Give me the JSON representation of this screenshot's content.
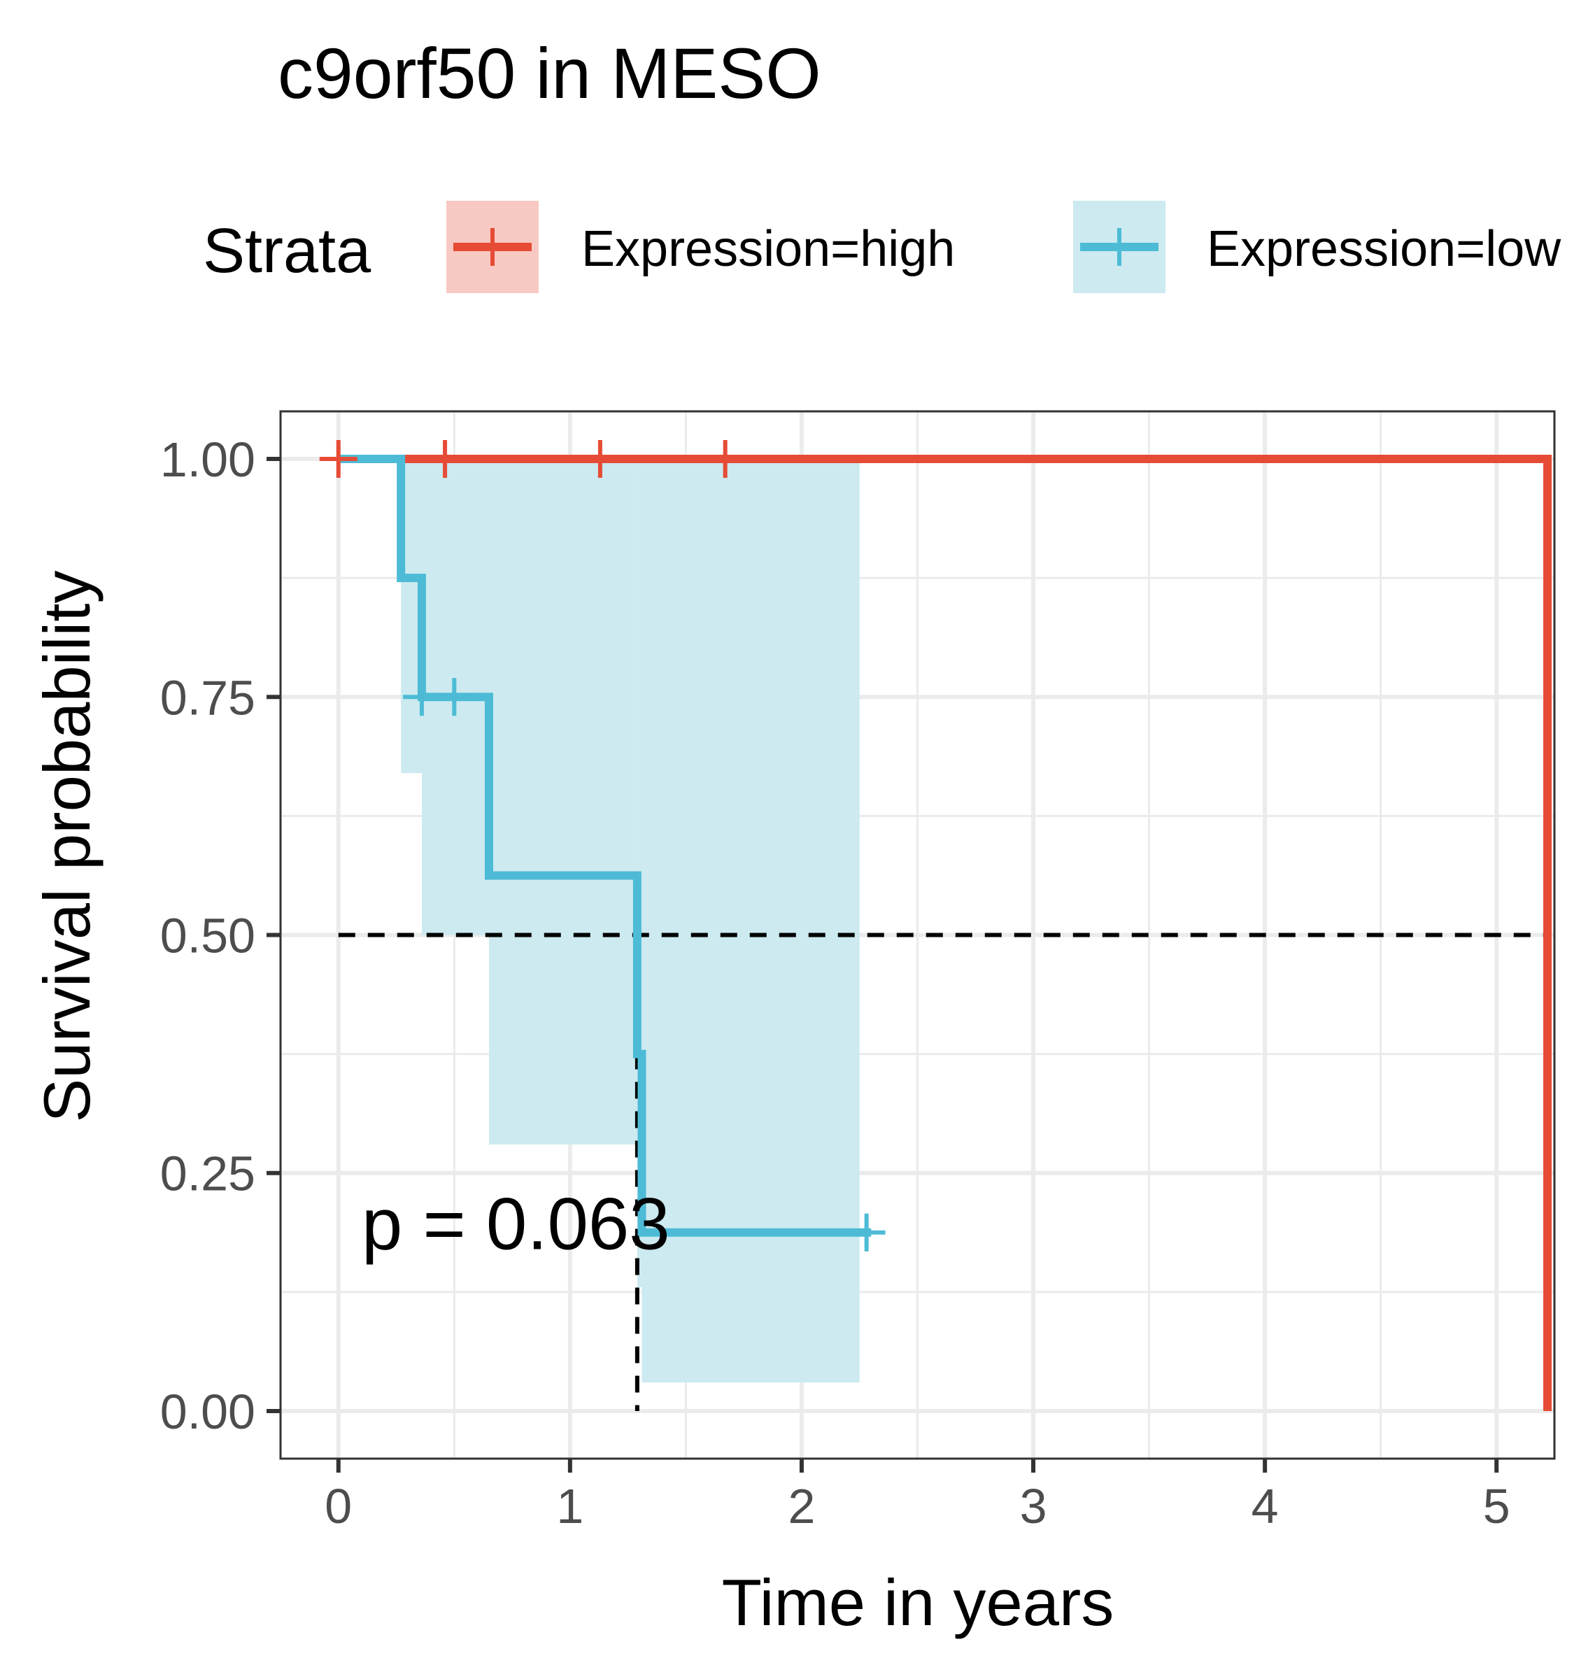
{
  "chart_data": {
    "type": "line",
    "subtype": "kaplan-meier survival curve",
    "title": "c9orf50 in MESO",
    "xlabel": "Time in years",
    "ylabel": "Survival probability",
    "xlim": [
      -0.25,
      5.25
    ],
    "ylim": [
      -0.05,
      1.05
    ],
    "x_ticks": [
      "0",
      "1",
      "2",
      "3",
      "4",
      "5"
    ],
    "x_tick_values": [
      0,
      1,
      2,
      3,
      4,
      5
    ],
    "y_ticks": [
      "0.00",
      "0.25",
      "0.50",
      "0.75",
      "1.00"
    ],
    "y_tick_values": [
      0,
      0.25,
      0.5,
      0.75,
      1.0
    ],
    "grid": true,
    "legend": {
      "title": "Strata",
      "placement": "top",
      "entries": [
        "Expression=high",
        "Expression=low"
      ]
    },
    "annotation": "p = 0.063",
    "median_line": {
      "y": 0.5,
      "x_low": 1.29,
      "x_high": 5.22
    },
    "series": [
      {
        "name": "Expression=high",
        "color": "#E64B35",
        "fill": "#F8C9C2",
        "steps": [
          [
            0,
            1.0
          ],
          [
            5.22,
            1.0
          ],
          [
            5.22,
            0.0
          ]
        ],
        "censor": [
          [
            0,
            1.0
          ],
          [
            0.46,
            1.0
          ],
          [
            1.13,
            1.0
          ],
          [
            1.67,
            1.0
          ]
        ],
        "ci": []
      },
      {
        "name": "Expression=low",
        "color": "#4DBBD5",
        "fill": "#CCEAF0",
        "steps": [
          [
            0,
            1.0
          ],
          [
            0.27,
            1.0
          ],
          [
            0.27,
            0.875
          ],
          [
            0.36,
            0.875
          ],
          [
            0.36,
            0.75
          ],
          [
            0.65,
            0.75
          ],
          [
            0.65,
            0.5625
          ],
          [
            1.29,
            0.5625
          ],
          [
            1.29,
            0.375
          ],
          [
            1.31,
            0.375
          ],
          [
            1.31,
            0.1875
          ],
          [
            2.3,
            0.1875
          ]
        ],
        "censor": [
          [
            0.36,
            0.75
          ],
          [
            0.5,
            0.75
          ],
          [
            2.28,
            0.1875
          ]
        ],
        "ci": [
          {
            "x0": 0,
            "x1": 0.27,
            "lower": 1.0,
            "upper": 1.0
          },
          {
            "x0": 0.27,
            "x1": 0.36,
            "lower": 0.67,
            "upper": 1.0
          },
          {
            "x0": 0.36,
            "x1": 0.65,
            "lower": 0.5,
            "upper": 1.0
          },
          {
            "x0": 0.65,
            "x1": 1.29,
            "lower": 0.28,
            "upper": 1.0
          },
          {
            "x0": 1.29,
            "x1": 1.31,
            "lower": 0.13,
            "upper": 1.0
          },
          {
            "x0": 1.31,
            "x1": 2.25,
            "lower": 0.03,
            "upper": 1.0
          }
        ]
      }
    ]
  }
}
